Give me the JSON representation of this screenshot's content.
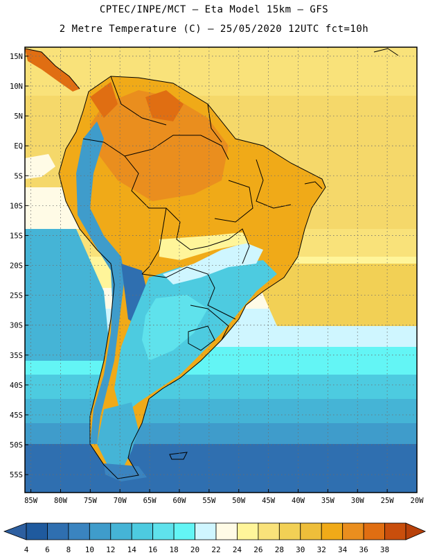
{
  "header": {
    "line1": "CPTEC/INPE/MCT –  Eta Model 15km – GFS",
    "line2": "2 Metre Temperature (C) – 25/05/2020 12UTC fct=10h"
  },
  "map": {
    "lat_labels": [
      "15N",
      "10N",
      "5N",
      "EQ",
      "5S",
      "10S",
      "15S",
      "20S",
      "25S",
      "30S",
      "35S",
      "40S",
      "45S",
      "50S",
      "55S"
    ],
    "lon_labels": [
      "85W",
      "80W",
      "75W",
      "70W",
      "65W",
      "60W",
      "55W",
      "50W",
      "45W",
      "40W",
      "35W",
      "30W",
      "25W",
      "20W"
    ],
    "lat_range": [
      -58,
      16.5
    ],
    "lon_range": [
      -86,
      -20
    ]
  },
  "colorbar": {
    "labels": [
      "4",
      "6",
      "8",
      "10",
      "12",
      "14",
      "16",
      "18",
      "20",
      "22",
      "24",
      "26",
      "28",
      "30",
      "32",
      "34",
      "36",
      "38"
    ],
    "colors": [
      "#1f5a9e",
      "#2f6fb0",
      "#3a84c0",
      "#3f9ccb",
      "#45b4d6",
      "#4dcbe0",
      "#5fe2ec",
      "#63f5f5",
      "#cff6ff",
      "#fffbe6",
      "#fff59a",
      "#f9e27a",
      "#f2d055",
      "#eebe3a",
      "#f0aa18",
      "#ea8e1e",
      "#e06e12",
      "#c94e0c"
    ],
    "low_color": "#2d5fa0",
    "high_color": "#b8410a"
  }
}
